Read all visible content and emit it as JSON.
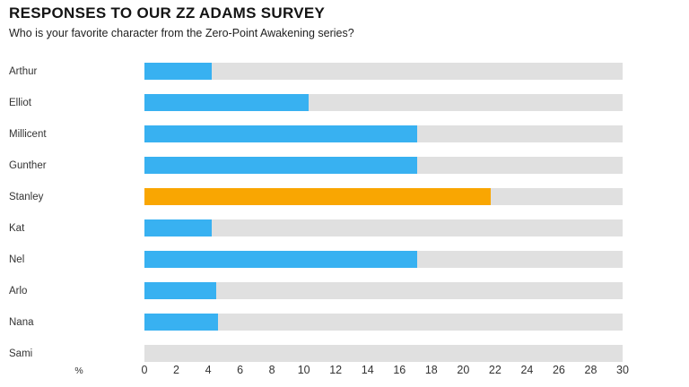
{
  "header": {
    "title": "RESPONSES TO OUR ZZ ADAMS SURVEY",
    "subtitle": "Who is your favorite character from the Zero-Point Awakening series?"
  },
  "chart_data": {
    "type": "bar",
    "orientation": "horizontal",
    "title": "RESPONSES TO OUR ZZ ADAMS SURVEY",
    "subtitle": "Who is your favorite character from the Zero-Point Awakening series?",
    "categories": [
      "Arthur",
      "Elliot",
      "Millicent",
      "Gunther",
      "Stanley",
      "Kat",
      "Nel",
      "Arlo",
      "Nana",
      "Sami"
    ],
    "values": [
      4.2,
      10.3,
      17.1,
      17.1,
      21.7,
      4.2,
      17.1,
      4.5,
      4.6,
      0
    ],
    "unit_label": "%",
    "xlabel": "%",
    "ylabel": "",
    "xlim": [
      0,
      30
    ],
    "xticks": [
      0,
      2,
      4,
      6,
      8,
      10,
      12,
      14,
      16,
      18,
      20,
      22,
      24,
      26,
      28,
      30
    ],
    "grid": false,
    "legend": false,
    "highlight_index": 4,
    "colors": {
      "bar": "#38b1f1",
      "highlight": "#f9a602",
      "track": "#e0e0e0",
      "title_text": "#141414",
      "label_text": "#333333"
    }
  }
}
